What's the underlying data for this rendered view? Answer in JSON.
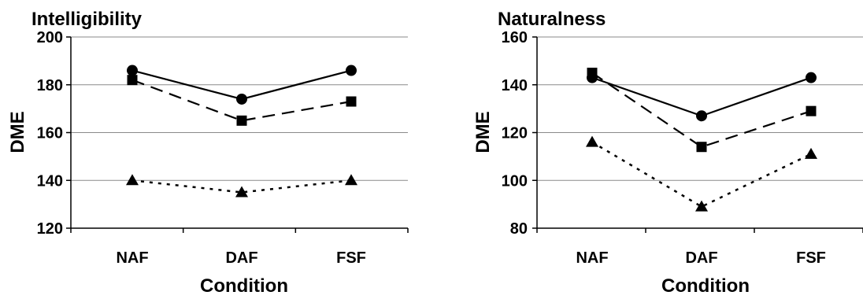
{
  "chart_data": [
    {
      "type": "line",
      "title": "Intelligibility",
      "xlabel": "Condition",
      "ylabel": "DME",
      "categories": [
        "NAF",
        "DAF",
        "FSF"
      ],
      "ylim": [
        120,
        200
      ],
      "yticks": [
        "120",
        "140",
        "160",
        "180",
        "200"
      ],
      "grid": true,
      "series": [
        {
          "values": [
            186,
            174,
            186
          ],
          "marker": "circle",
          "line": "solid"
        },
        {
          "values": [
            182,
            165,
            173
          ],
          "marker": "square",
          "line": "dashed"
        },
        {
          "values": [
            140,
            135,
            140
          ],
          "marker": "triangle",
          "line": "dotted"
        }
      ]
    },
    {
      "type": "line",
      "title": "Naturalness",
      "xlabel": "Condition",
      "ylabel": "DME",
      "categories": [
        "NAF",
        "DAF",
        "FSF"
      ],
      "ylim": [
        80,
        160
      ],
      "yticks": [
        "80",
        "100",
        "120",
        "140",
        "160"
      ],
      "grid": true,
      "series": [
        {
          "values": [
            143,
            127,
            143
          ],
          "marker": "circle",
          "line": "solid"
        },
        {
          "values": [
            145,
            114,
            129
          ],
          "marker": "square",
          "line": "dashed"
        },
        {
          "values": [
            116,
            89,
            111
          ],
          "marker": "triangle",
          "line": "dotted"
        }
      ]
    }
  ]
}
